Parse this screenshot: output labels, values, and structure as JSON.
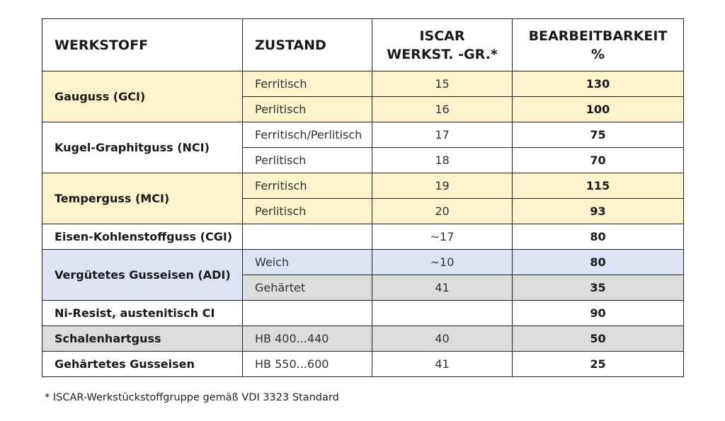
{
  "headers": {
    "material": "WERKSTOFF",
    "state": "ZUSTAND",
    "group_line1": "ISCAR",
    "group_line2": "WERKST. -GR.*",
    "machinability_line1": "BEARBEITBARKEIT",
    "machinability_line2": "%"
  },
  "rows": [
    {
      "material": "Gauguss (GCI)",
      "state": "Ferritisch",
      "group": "15",
      "value": "130"
    },
    {
      "state": "Perlitisch",
      "group": "16",
      "value": "100"
    },
    {
      "material": "Kugel-Graphitguss (NCI)",
      "state": "Ferritisch/Perlitisch",
      "group": "17",
      "value": "75"
    },
    {
      "state": "Perlitisch",
      "group": "18",
      "value": "70"
    },
    {
      "material": "Temperguss (MCI)",
      "state": "Ferritisch",
      "group": "19",
      "value": "115"
    },
    {
      "state": "Perlitisch",
      "group": "20",
      "value": "93"
    },
    {
      "material": "Eisen-Kohlenstoffguss (CGI)",
      "state": "",
      "group": "~17",
      "value": "80"
    },
    {
      "material": "Vergütetes Gusseisen (ADI)",
      "state": "Weich",
      "group": "~10",
      "value": "80"
    },
    {
      "state": "Gehärtet",
      "group": "41",
      "value": "35"
    },
    {
      "material": "Ni-Resist, austenitisch CI",
      "state": "",
      "group": "",
      "value": "90"
    },
    {
      "material": "Schalenhartguss",
      "state": "HB 400...440",
      "group": "40",
      "value": "50"
    },
    {
      "material": "Gehärtetes Gusseisen",
      "state": "HB 550...600",
      "group": "41",
      "value": "25"
    }
  ],
  "footnote": "* ISCAR-Werkstückstoffgruppe gemäß VDI 3323 Standard",
  "colors": {
    "yellow": "#fcf3cc",
    "blue": "#dde2f4",
    "gray": "#dcdcdc"
  }
}
